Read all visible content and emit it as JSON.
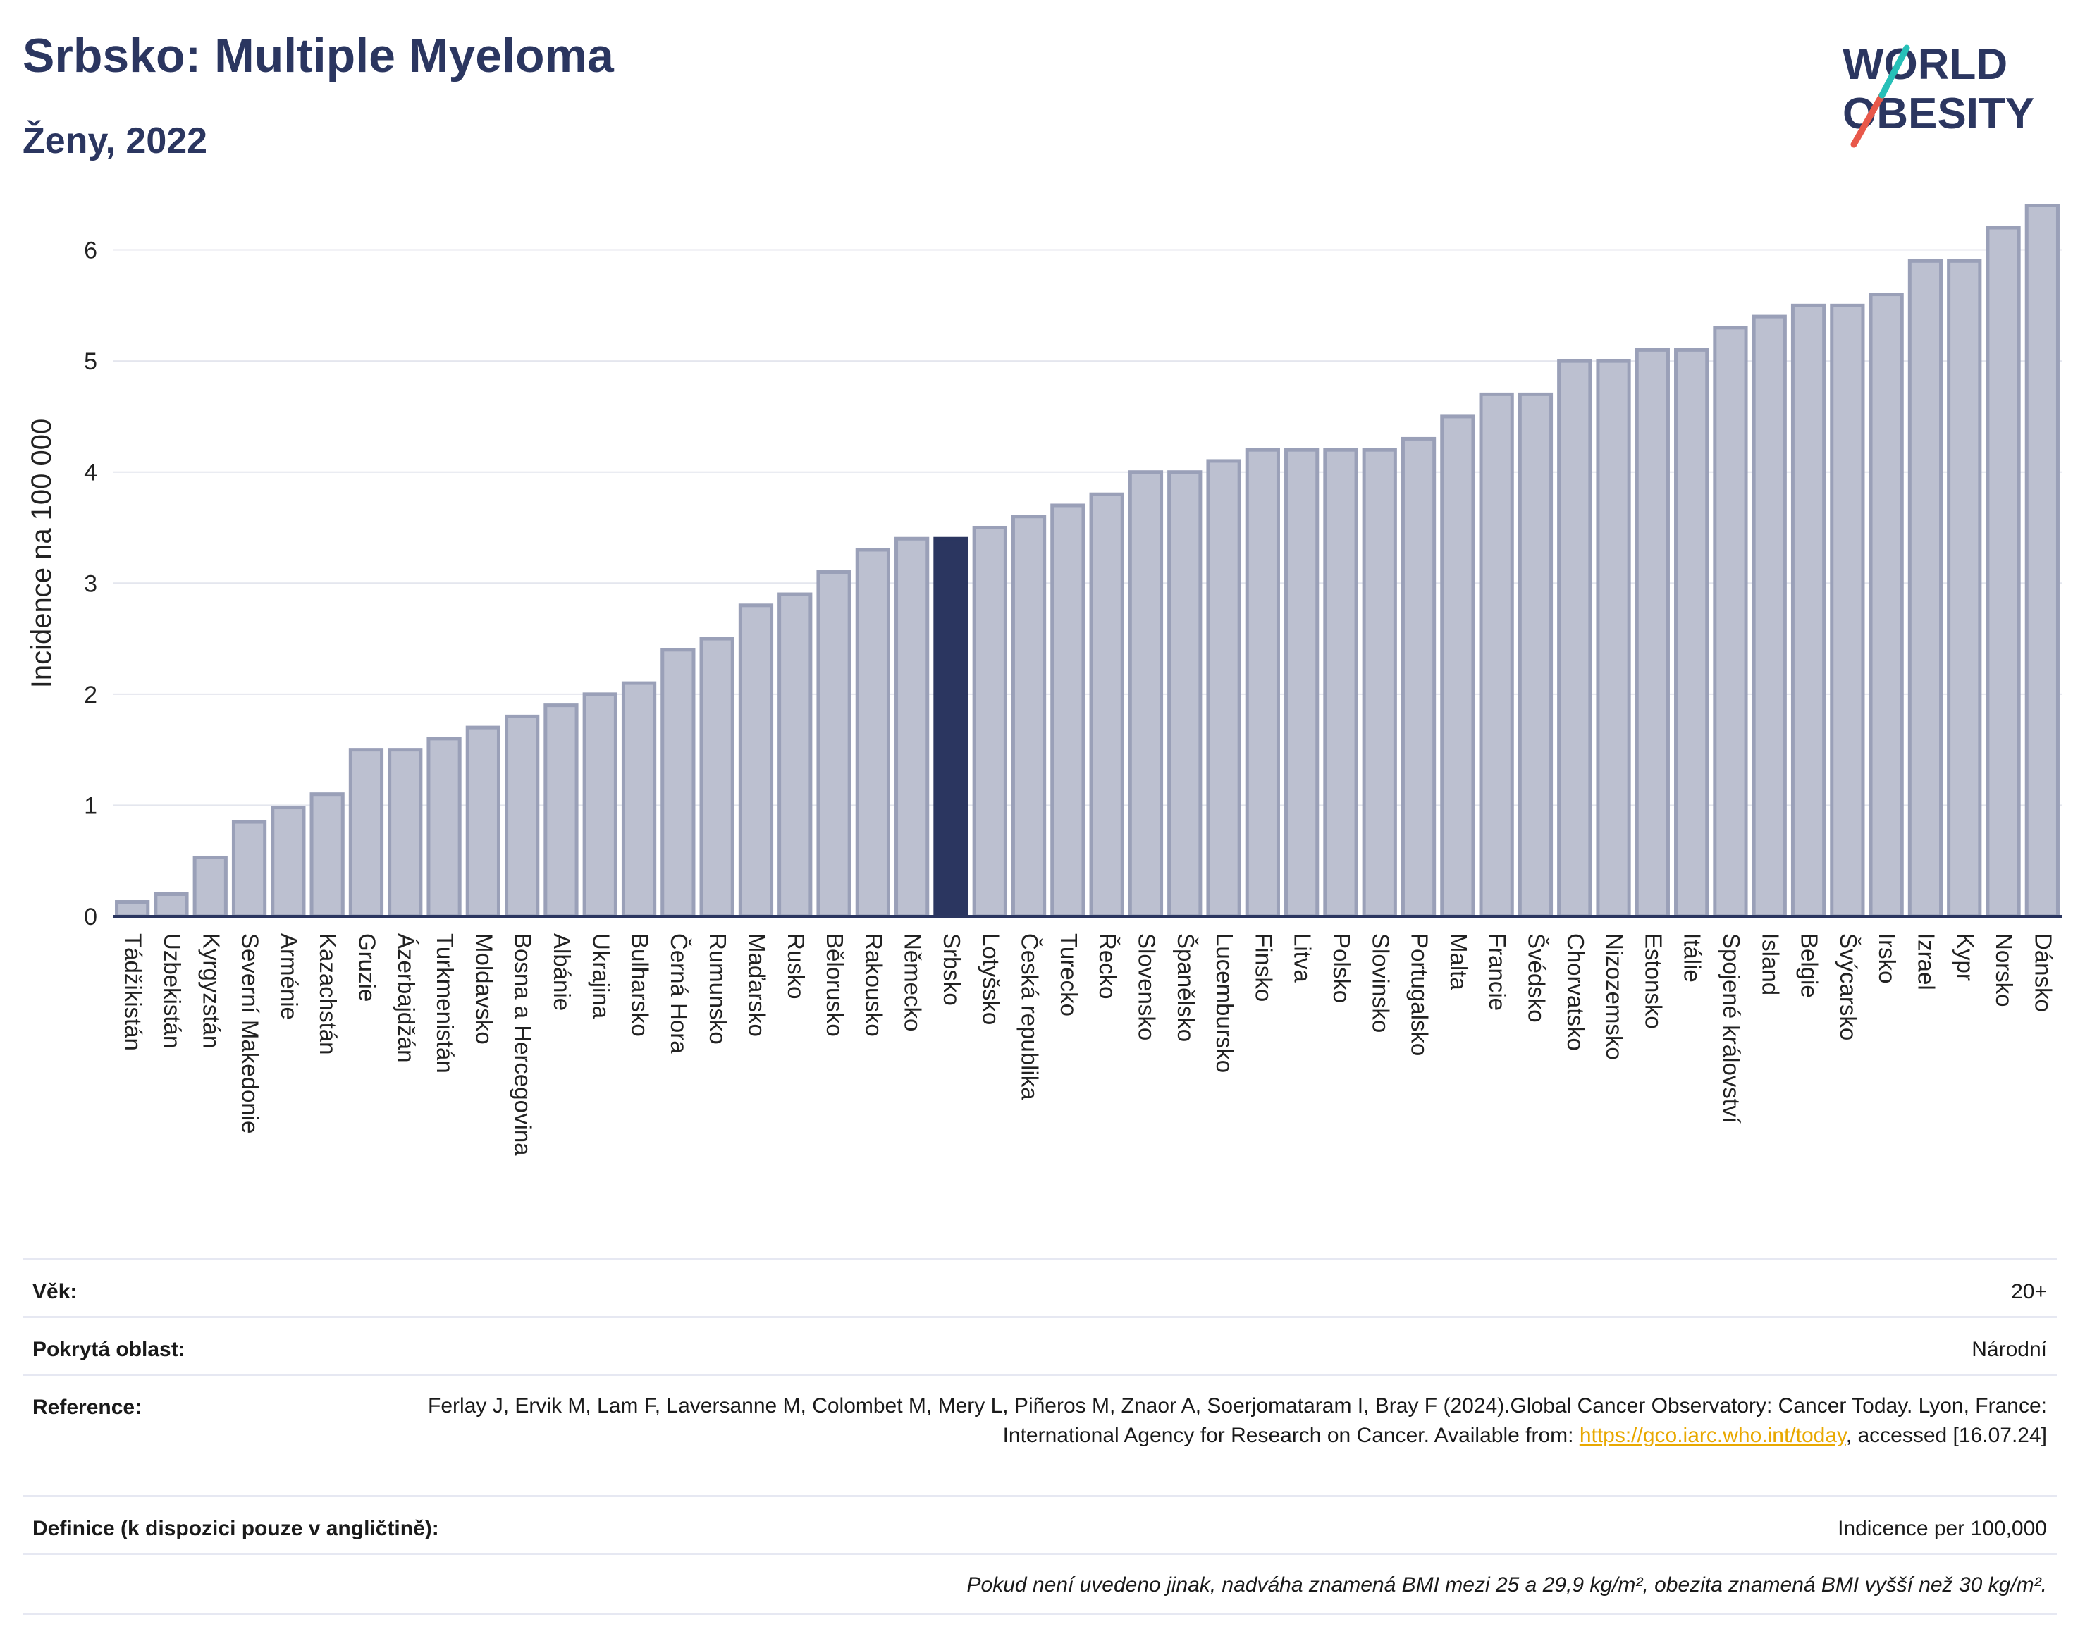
{
  "header": {
    "title": "Srbsko: Multiple Myeloma",
    "subtitle": "Ženy, 2022"
  },
  "logo": {
    "line1": "WORLD",
    "line2": "OBESITY",
    "accent_colors": [
      "#e8584a",
      "#27c0b8"
    ]
  },
  "chart_data": {
    "type": "bar",
    "ylabel": "Incidence na 100 000",
    "xlabel": "",
    "ylim": [
      0,
      6.6
    ],
    "yticks": [
      0,
      1,
      2,
      3,
      4,
      5,
      6
    ],
    "grid": true,
    "highlight": "Srbsko",
    "colors": {
      "bar": "#bcc0d0",
      "bar_edge": "#9aa0b8",
      "highlight": "#2b3660"
    },
    "categories": [
      "Tádžikistán",
      "Uzbekistán",
      "Kyrgyzstán",
      "Severní Makedonie",
      "Arménie",
      "Kazachstán",
      "Gruzie",
      "Ázerbajdžán",
      "Turkmenistán",
      "Moldavsko",
      "Bosna a Hercegovina",
      "Albánie",
      "Ukrajina",
      "Bulharsko",
      "Černá Hora",
      "Rumunsko",
      "Maďarsko",
      "Rusko",
      "Bělorusko",
      "Rakousko",
      "Německo",
      "Srbsko",
      "Lotyšsko",
      "Česká republika",
      "Turecko",
      "Řecko",
      "Slovensko",
      "Španělsko",
      "Lucembursko",
      "Finsko",
      "Litva",
      "Polsko",
      "Slovinsko",
      "Portugalsko",
      "Malta",
      "Francie",
      "Švédsko",
      "Chorvatsko",
      "Nizozemsko",
      "Estonsko",
      "Itálie",
      "Spojené království",
      "Island",
      "Belgie",
      "Švýcarsko",
      "Irsko",
      "Izrael",
      "Kypr",
      "Norsko",
      "Dánsko"
    ],
    "values": [
      0.13,
      0.2,
      0.53,
      0.85,
      0.98,
      1.1,
      1.5,
      1.5,
      1.6,
      1.7,
      1.8,
      1.9,
      2.0,
      2.1,
      2.4,
      2.5,
      2.8,
      2.9,
      3.1,
      3.3,
      3.4,
      3.4,
      3.5,
      3.6,
      3.7,
      3.8,
      4.0,
      4.0,
      4.1,
      4.2,
      4.2,
      4.2,
      4.2,
      4.3,
      4.5,
      4.7,
      4.7,
      5.0,
      5.0,
      5.1,
      5.1,
      5.3,
      5.4,
      5.5,
      5.5,
      5.6,
      5.9,
      5.9,
      6.2,
      6.4
    ]
  },
  "info": {
    "age_label": "Věk:",
    "age_value": "20+",
    "coverage_label": "Pokrytá oblast:",
    "coverage_value": "Národní",
    "reference_label": "Reference:",
    "reference_text1": "Ferlay J, Ervik M, Lam F, Laversanne M, Colombet M, Mery L, Piñeros M, Znaor A, Soerjomataram I, Bray F (2024).Global Cancer Observatory: Cancer Today. Lyon, France: International Agency for Research on Cancer. Available from: ",
    "reference_link": "https://gco.iarc.who.int/today",
    "reference_text2": ", accessed [16.07.24]",
    "definition_label": "Definice (k dispozici pouze v angličtině):",
    "definition_value": "Indicence per 100,000",
    "note": "Pokud není uvedeno jinak, nadváha znamená BMI mezi 25 a 29,9 kg/m², obezita znamená BMI vyšší než 30 kg/m²."
  }
}
